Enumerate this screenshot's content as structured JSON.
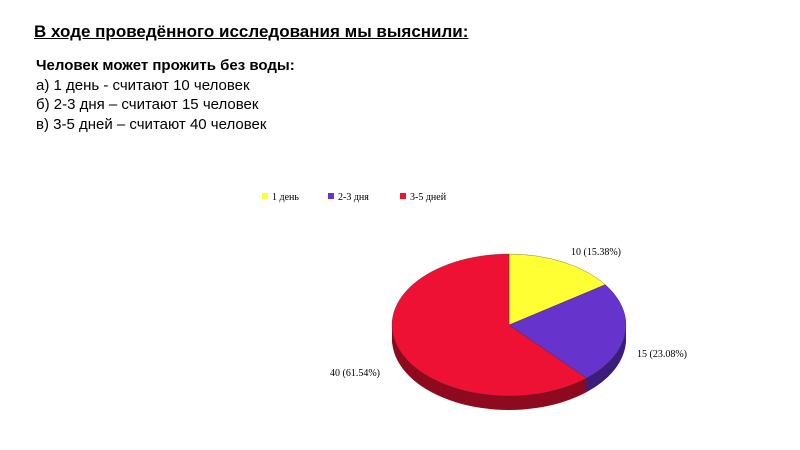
{
  "slide": {
    "title": "В ходе проведённого исследования мы выяснили:",
    "heading": "Человек может прожить без воды:",
    "lines": [
      "а) 1 день -  считают 10 человек",
      "б) 2-3 дня – считают 15 человек",
      "в) 3-5 дней – считают  40 человек"
    ]
  },
  "chart_data": {
    "type": "pie",
    "style": "3d",
    "legend_position": "top",
    "categories": [
      "1 день",
      "2-3 дня",
      "3-5 дней"
    ],
    "values": [
      10,
      15,
      40
    ],
    "percents": [
      15.38,
      23.08,
      61.54
    ],
    "data_labels": [
      "10 (15.38%)",
      "15 (23.08%)",
      "40 (61.54%)"
    ],
    "colors": [
      "#ffff33",
      "#6633cc",
      "#ee1133"
    ]
  }
}
